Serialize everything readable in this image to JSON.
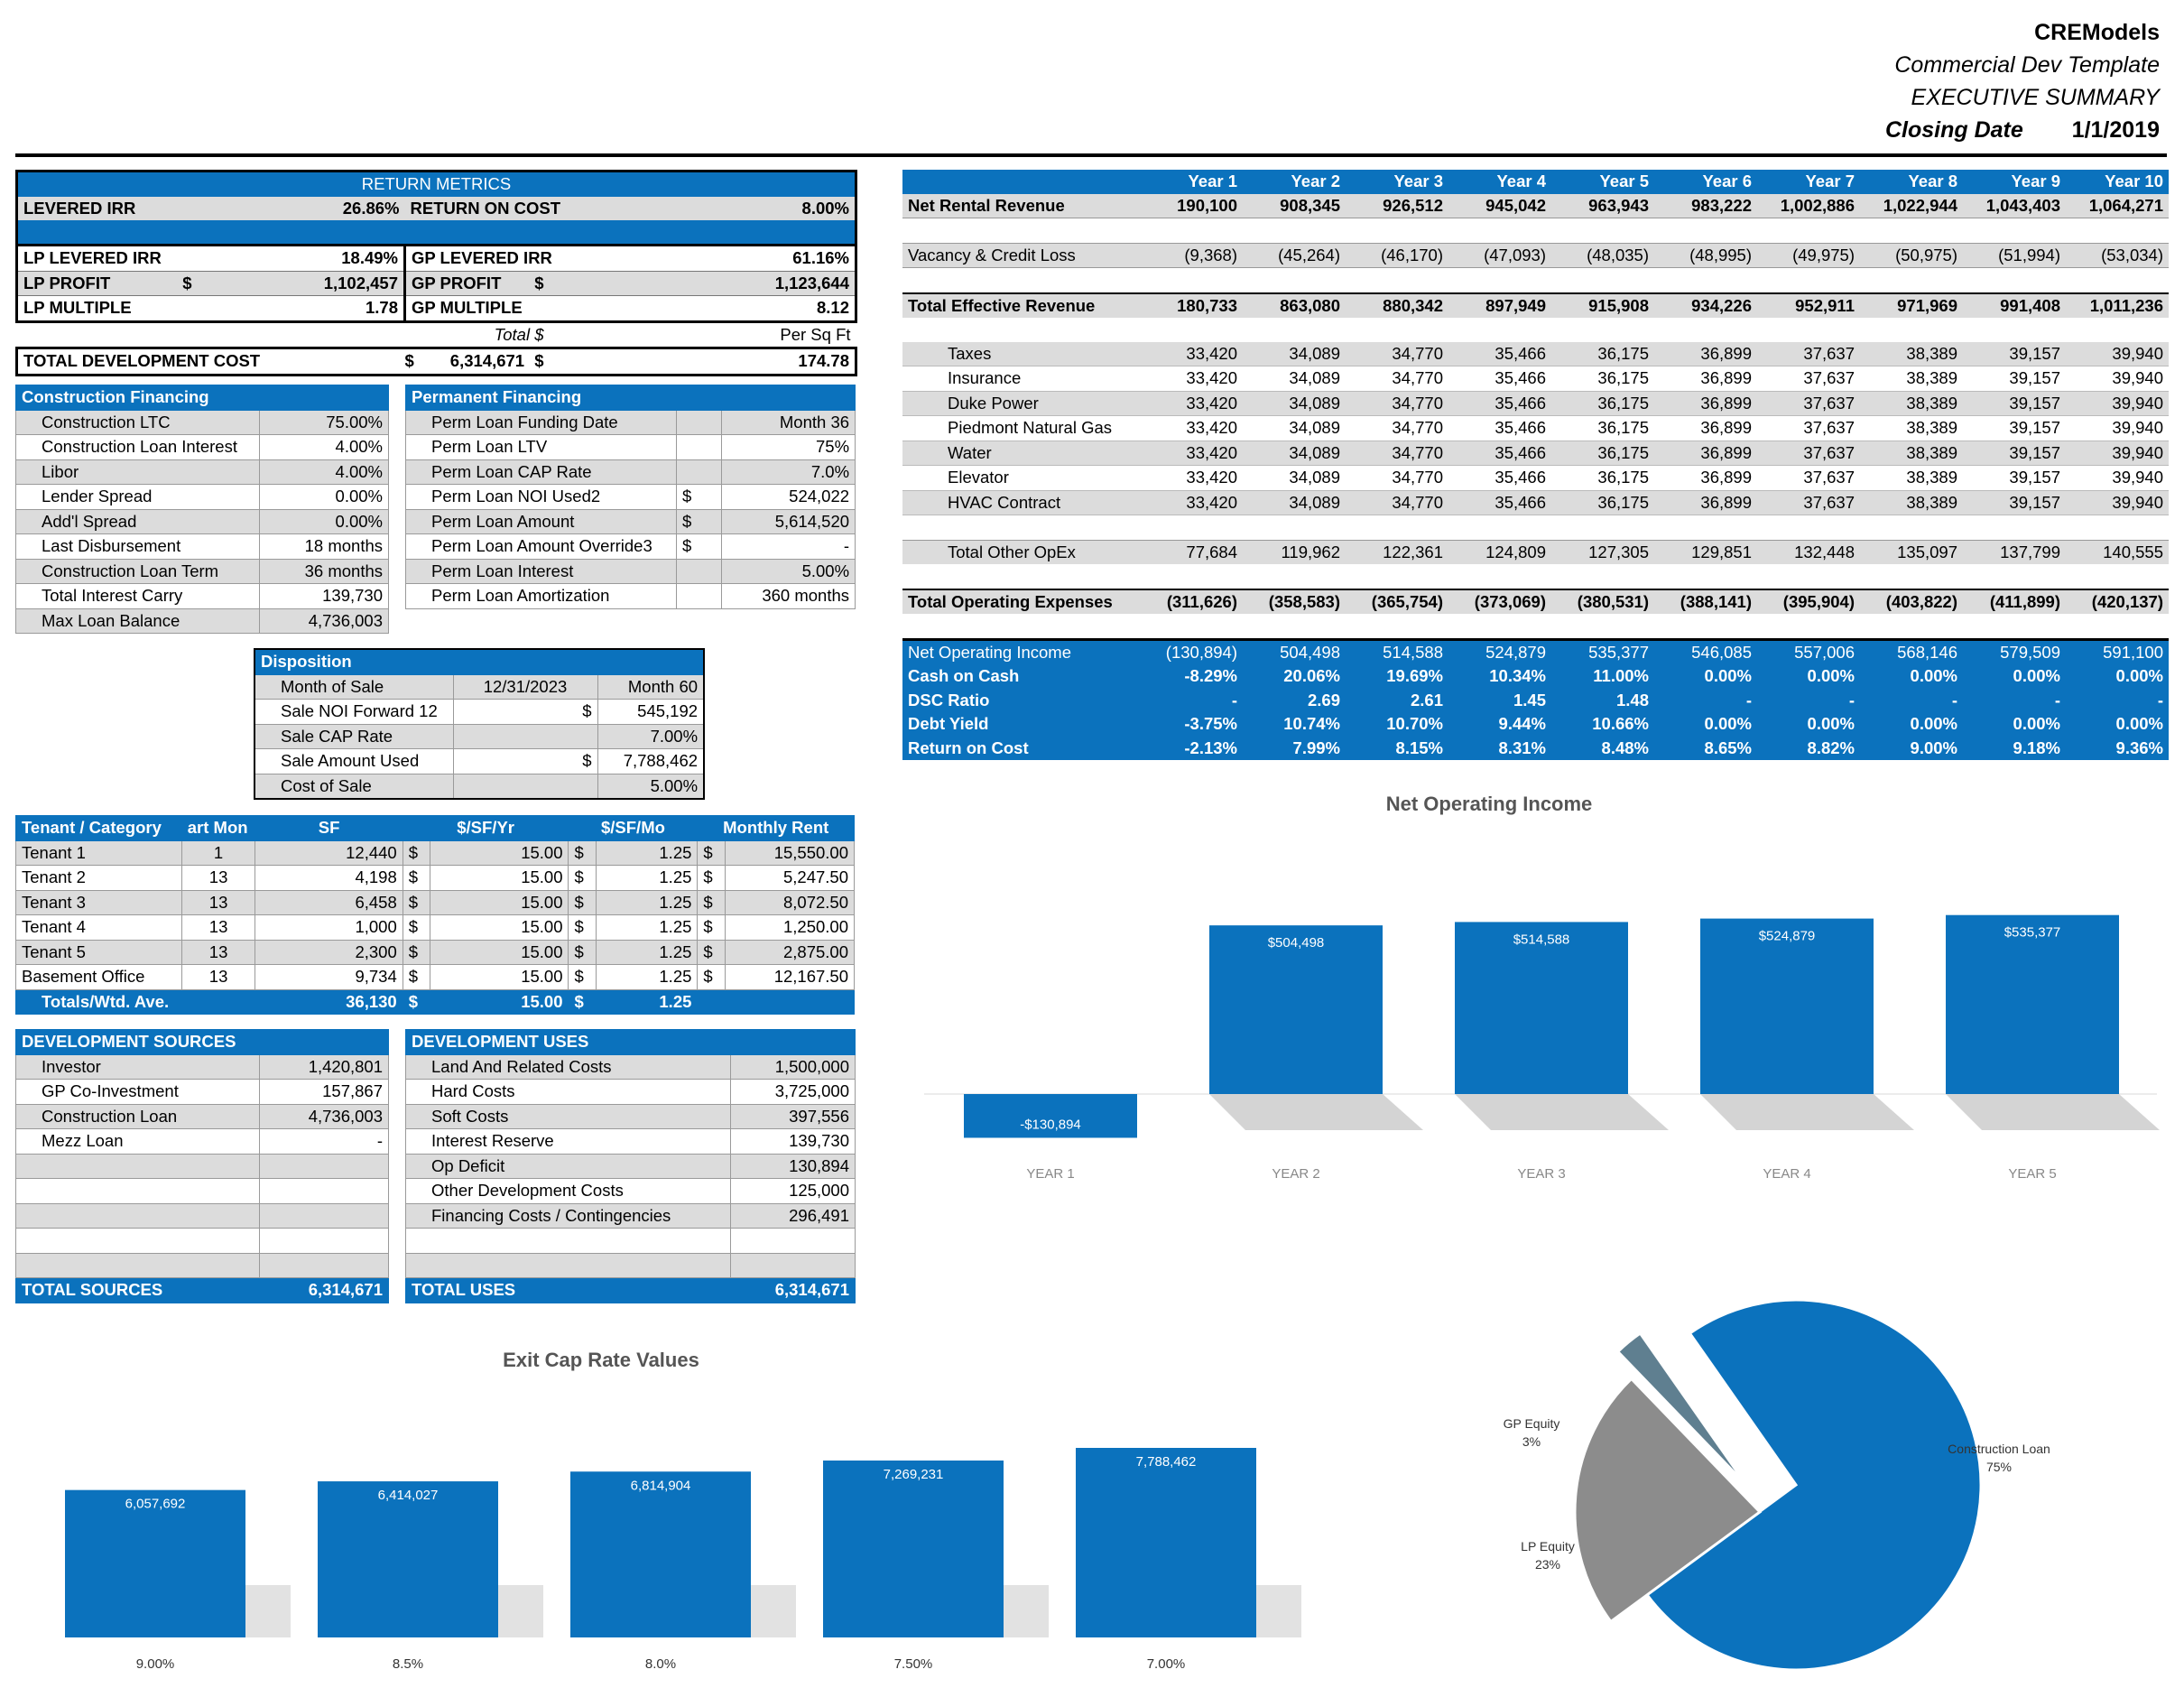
{
  "header": {
    "company": "CREModels",
    "template": "Commercial Dev Template",
    "title": "EXECUTIVE SUMMARY",
    "closing_label": "Closing Date",
    "closing_date": "1/1/2019"
  },
  "return_metrics": {
    "title": "RETURN METRICS",
    "levered_irr_label": "LEVERED IRR",
    "levered_irr": "26.86%",
    "roc_label": "RETURN ON COST",
    "roc": "8.00%",
    "lp_irr_label": "LP LEVERED IRR",
    "lp_irr": "18.49%",
    "gp_irr_label": "GP LEVERED IRR",
    "gp_irr": "61.16%",
    "lp_profit_label": "LP PROFIT",
    "lp_profit": "1,102,457",
    "gp_profit_label": "GP PROFIT",
    "gp_profit": "1,123,644",
    "lp_multiple_label": "LP MULTIPLE",
    "lp_multiple": "1.78",
    "gp_multiple_label": "GP MULTIPLE",
    "gp_multiple": "8.12",
    "total_label": "Total $",
    "per_sf_label": "Per Sq Ft",
    "tdc_label": "TOTAL DEVELOPMENT COST",
    "tdc": "6,314,671",
    "tdc_psf": "174.78",
    "dollar": "$"
  },
  "construction": {
    "title": "Construction Financing",
    "rows": [
      {
        "label": "Construction LTC",
        "value": "75.00%"
      },
      {
        "label": "Construction Loan Interest",
        "value": "4.00%"
      },
      {
        "label": "Libor",
        "value": "4.00%"
      },
      {
        "label": "Lender Spread",
        "value": "0.00%"
      },
      {
        "label": "Add'l Spread",
        "value": "0.00%"
      },
      {
        "label": "Last Disbursement",
        "value": "18 months"
      },
      {
        "label": "Construction Loan Term",
        "value": "36 months"
      },
      {
        "label": "Total Interest Carry",
        "value": "139,730"
      },
      {
        "label": "Max Loan Balance",
        "value": "4,736,003"
      }
    ]
  },
  "permanent": {
    "title": "Permanent Financing",
    "rows": [
      {
        "label": "Perm Loan Funding Date",
        "cur": "",
        "value": "Month 36"
      },
      {
        "label": "Perm Loan LTV",
        "cur": "",
        "value": "75%"
      },
      {
        "label": "Perm Loan CAP Rate",
        "cur": "",
        "value": "7.0%"
      },
      {
        "label": "Perm Loan NOI Used2",
        "cur": "$",
        "value": "524,022"
      },
      {
        "label": "Perm Loan Amount",
        "cur": "$",
        "value": "5,614,520"
      },
      {
        "label": "Perm Loan Amount Override3",
        "cur": "$",
        "value": "-"
      },
      {
        "label": "Perm Loan Interest",
        "cur": "",
        "value": "5.00%"
      },
      {
        "label": "Perm Loan Amortization",
        "cur": "",
        "value": "360 months"
      }
    ]
  },
  "disposition": {
    "title": "Disposition",
    "rows": [
      {
        "label": "Month of Sale",
        "mid": "12/31/2023",
        "value": "Month 60"
      },
      {
        "label": "Sale NOI Forward 12",
        "mid": "$",
        "value": "545,192"
      },
      {
        "label": "Sale CAP Rate",
        "mid": "",
        "value": "7.00%"
      },
      {
        "label": "Sale Amount Used",
        "mid": "$",
        "value": "7,788,462"
      },
      {
        "label": "Cost of Sale",
        "mid": "",
        "value": "5.00%"
      }
    ]
  },
  "rent_roll": {
    "headers": [
      "Tenant / Category",
      "art Mon",
      "SF",
      "$/SF/Yr",
      "$/SF/Mo",
      "Monthly Rent"
    ],
    "dollar": "$",
    "rows": [
      {
        "name": "Tenant 1",
        "start": "1",
        "sf": "12,440",
        "yr": "15.00",
        "mo": "1.25",
        "rent": "15,550.00"
      },
      {
        "name": "Tenant 2",
        "start": "13",
        "sf": "4,198",
        "yr": "15.00",
        "mo": "1.25",
        "rent": "5,247.50"
      },
      {
        "name": "Tenant 3",
        "start": "13",
        "sf": "6,458",
        "yr": "15.00",
        "mo": "1.25",
        "rent": "8,072.50"
      },
      {
        "name": "Tenant 4",
        "start": "13",
        "sf": "1,000",
        "yr": "15.00",
        "mo": "1.25",
        "rent": "1,250.00"
      },
      {
        "name": "Tenant 5",
        "start": "13",
        "sf": "2,300",
        "yr": "15.00",
        "mo": "1.25",
        "rent": "2,875.00"
      },
      {
        "name": "Basement Office",
        "start": "13",
        "sf": "9,734",
        "yr": "15.00",
        "mo": "1.25",
        "rent": "12,167.50"
      }
    ],
    "total": {
      "name": "Totals/Wtd. Ave.",
      "sf": "36,130",
      "yr": "15.00",
      "mo": "1.25"
    }
  },
  "sources": {
    "title": "DEVELOPMENT SOURCES",
    "rows": [
      {
        "label": "Investor",
        "value": "1,420,801"
      },
      {
        "label": "GP Co-Investment",
        "value": "157,867"
      },
      {
        "label": "Construction Loan",
        "value": "4,736,003"
      },
      {
        "label": "Mezz Loan",
        "value": "-"
      }
    ],
    "total_label": "TOTAL SOURCES",
    "total": "6,314,671"
  },
  "uses": {
    "title": "DEVELOPMENT USES",
    "rows": [
      {
        "label": "Land And Related Costs",
        "value": "1,500,000"
      },
      {
        "label": "Hard Costs",
        "value": "3,725,000"
      },
      {
        "label": "Soft Costs",
        "value": "397,556"
      },
      {
        "label": "Interest Reserve",
        "value": "139,730"
      },
      {
        "label": "Op Deficit",
        "value": "130,894"
      },
      {
        "label": "Other Development Costs",
        "value": "125,000"
      },
      {
        "label": "Financing Costs / Contingencies",
        "value": "296,491"
      }
    ],
    "total_label": "TOTAL USES",
    "total": "6,314,671"
  },
  "proforma": {
    "years": [
      "Year 1",
      "Year 2",
      "Year 3",
      "Year 4",
      "Year 5",
      "Year 6",
      "Year 7",
      "Year 8",
      "Year 9",
      "Year 10"
    ],
    "nrr": {
      "label": "Net Rental Revenue",
      "values": [
        "190,100",
        "908,345",
        "926,512",
        "945,042",
        "963,943",
        "983,222",
        "1,002,886",
        "1,022,944",
        "1,043,403",
        "1,064,271"
      ]
    },
    "vacancy": {
      "label": "Vacancy & Credit Loss",
      "values": [
        "(9,368)",
        "(45,264)",
        "(46,170)",
        "(47,093)",
        "(48,035)",
        "(48,995)",
        "(49,975)",
        "(50,975)",
        "(51,994)",
        "(53,034)"
      ]
    },
    "ter": {
      "label": "Total Effective Revenue",
      "values": [
        "180,733",
        "863,080",
        "880,342",
        "897,949",
        "915,908",
        "934,226",
        "952,911",
        "971,969",
        "991,408",
        "1,011,236"
      ]
    },
    "opex": [
      {
        "label": "Taxes",
        "values": [
          "33,420",
          "34,089",
          "34,770",
          "35,466",
          "36,175",
          "36,899",
          "37,637",
          "38,389",
          "39,157",
          "39,940"
        ]
      },
      {
        "label": "Insurance",
        "values": [
          "33,420",
          "34,089",
          "34,770",
          "35,466",
          "36,175",
          "36,899",
          "37,637",
          "38,389",
          "39,157",
          "39,940"
        ]
      },
      {
        "label": "Duke Power",
        "values": [
          "33,420",
          "34,089",
          "34,770",
          "35,466",
          "36,175",
          "36,899",
          "37,637",
          "38,389",
          "39,157",
          "39,940"
        ]
      },
      {
        "label": "Piedmont Natural Gas",
        "values": [
          "33,420",
          "34,089",
          "34,770",
          "35,466",
          "36,175",
          "36,899",
          "37,637",
          "38,389",
          "39,157",
          "39,940"
        ]
      },
      {
        "label": "Water",
        "values": [
          "33,420",
          "34,089",
          "34,770",
          "35,466",
          "36,175",
          "36,899",
          "37,637",
          "38,389",
          "39,157",
          "39,940"
        ]
      },
      {
        "label": "Elevator",
        "values": [
          "33,420",
          "34,089",
          "34,770",
          "35,466",
          "36,175",
          "36,899",
          "37,637",
          "38,389",
          "39,157",
          "39,940"
        ]
      },
      {
        "label": "HVAC Contract",
        "values": [
          "33,420",
          "34,089",
          "34,770",
          "35,466",
          "36,175",
          "36,899",
          "37,637",
          "38,389",
          "39,157",
          "39,940"
        ]
      }
    ],
    "other_opex": {
      "label": "Total Other OpEx",
      "values": [
        "77,684",
        "119,962",
        "122,361",
        "124,809",
        "127,305",
        "129,851",
        "132,448",
        "135,097",
        "137,799",
        "140,555"
      ]
    },
    "toe": {
      "label": "Total Operating Expenses",
      "values": [
        "(311,626)",
        "(358,583)",
        "(365,754)",
        "(373,069)",
        "(380,531)",
        "(388,141)",
        "(395,904)",
        "(403,822)",
        "(411,899)",
        "(420,137)"
      ]
    },
    "metrics": [
      {
        "label": "Net Operating Income",
        "values": [
          "(130,894)",
          "504,498",
          "514,588",
          "524,879",
          "535,377",
          "546,085",
          "557,006",
          "568,146",
          "579,509",
          "591,100"
        ]
      },
      {
        "label": "Cash on Cash",
        "values": [
          "-8.29%",
          "20.06%",
          "19.69%",
          "10.34%",
          "11.00%",
          "0.00%",
          "0.00%",
          "0.00%",
          "0.00%",
          "0.00%"
        ]
      },
      {
        "label": "DSC Ratio",
        "values": [
          "-",
          "2.69",
          "2.61",
          "1.45",
          "1.48",
          "-",
          "-",
          "-",
          "-",
          "-"
        ]
      },
      {
        "label": "Debt Yield",
        "values": [
          "-3.75%",
          "10.74%",
          "10.70%",
          "9.44%",
          "10.66%",
          "0.00%",
          "0.00%",
          "0.00%",
          "0.00%",
          "0.00%"
        ]
      },
      {
        "label": "Return on Cost",
        "values": [
          "-2.13%",
          "7.99%",
          "8.15%",
          "8.31%",
          "8.48%",
          "8.65%",
          "8.82%",
          "9.00%",
          "9.18%",
          "9.36%"
        ]
      }
    ]
  },
  "chart_data": [
    {
      "type": "bar",
      "title": "Net Operating Income",
      "categories": [
        "YEAR 1",
        "YEAR 2",
        "YEAR 3",
        "YEAR 4",
        "YEAR 5"
      ],
      "values": [
        -130894,
        504498,
        514588,
        524879,
        535377
      ],
      "labels": [
        "-$130,894",
        "$504,498",
        "$514,588",
        "$524,879",
        "$535,377"
      ]
    },
    {
      "type": "bar",
      "title": "Exit Cap Rate Values",
      "categories": [
        "9.00%",
        "8.5%",
        "8.0%",
        "7.50%",
        "7.00%"
      ],
      "values": [
        6057692,
        6414027,
        6814904,
        7269231,
        7788462
      ],
      "labels": [
        "6,057,692",
        "6,414,027",
        "6,814,904",
        "7,269,231",
        "7,788,462"
      ]
    },
    {
      "type": "pie",
      "slices": [
        {
          "name": "Construction Loan",
          "pct_label": "75%",
          "value": 75,
          "color": "#0b72bd"
        },
        {
          "name": "LP Equity",
          "pct_label": "23%",
          "value": 23,
          "color": "#8c8c8c"
        },
        {
          "name": "GP Equity",
          "pct_label": "3%",
          "value": 2.5,
          "color": "#5f7f90"
        }
      ]
    }
  ],
  "colors": {
    "accent": "#0b72bd",
    "gray": "#dcdcdc"
  }
}
